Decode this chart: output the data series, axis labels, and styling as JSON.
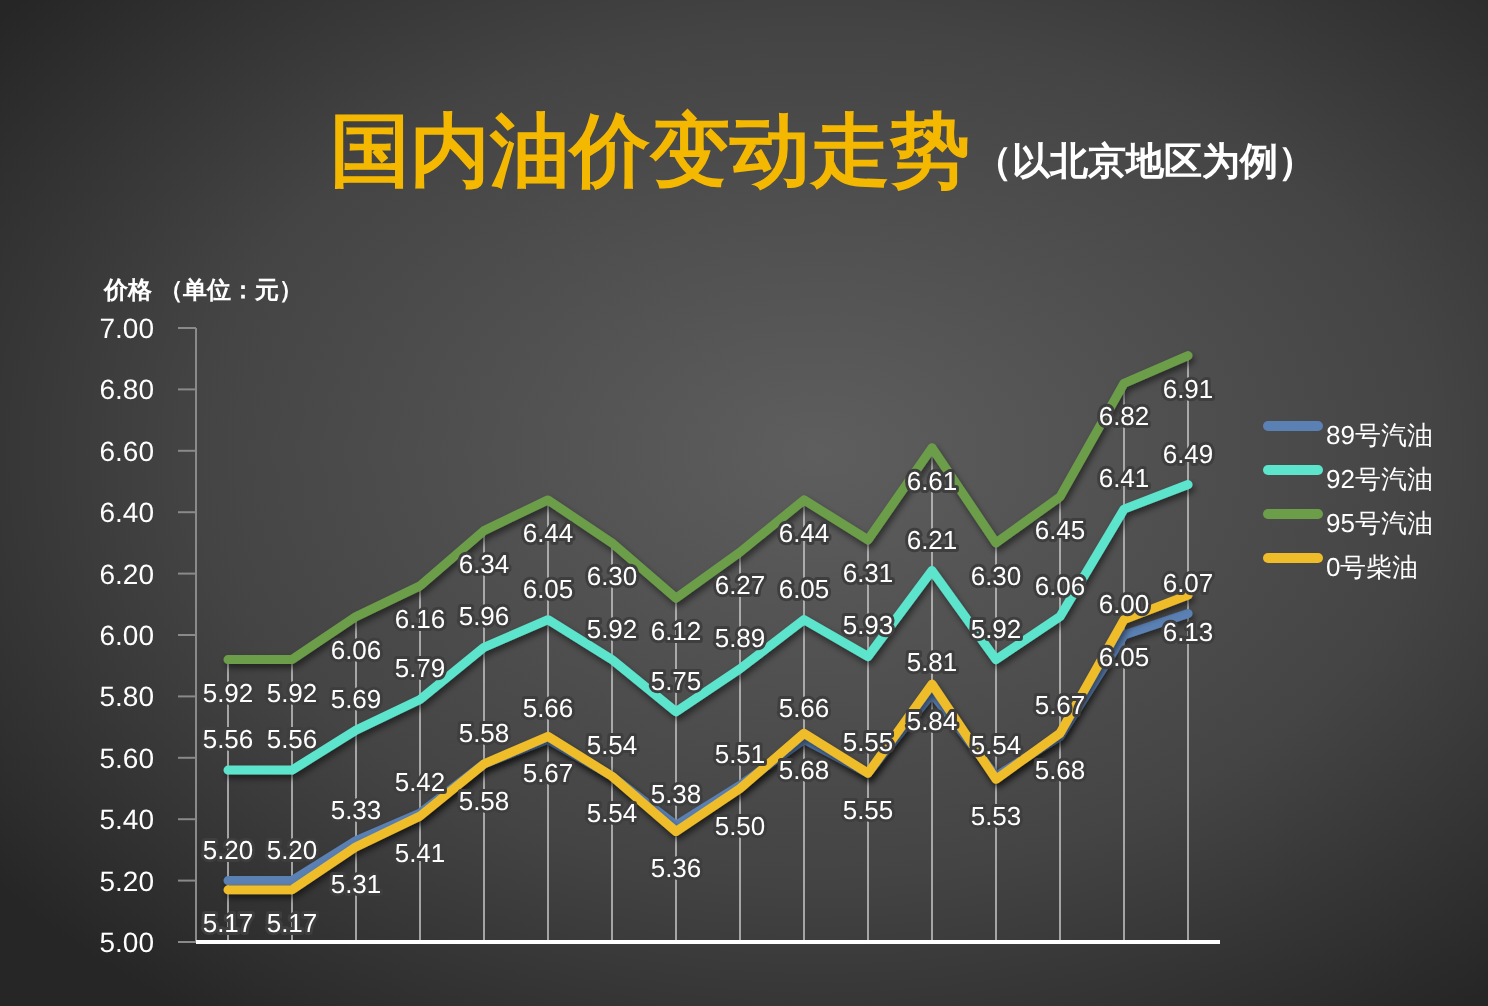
{
  "chart_data": {
    "type": "line",
    "title": "国内油价变动走势",
    "subtitle": "（以北京地区为例）",
    "ylabel": "价格 （单位：元）",
    "categories": [
      null,
      null,
      null,
      null,
      null,
      null,
      null,
      null,
      null,
      null,
      null,
      null,
      null,
      null,
      null,
      null
    ],
    "series": [
      {
        "name": "89号汽油",
        "color": "#5a80b4",
        "values": [
          5.2,
          5.2,
          5.33,
          5.42,
          5.58,
          5.66,
          5.54,
          5.38,
          5.51,
          5.66,
          5.55,
          5.81,
          5.54,
          5.67,
          6.0,
          6.07
        ],
        "value_labels": [
          "5.20",
          "5.20",
          "5.33",
          "5.42",
          "5.58",
          "5.66",
          "5.54",
          "5.38",
          "5.51",
          "5.66",
          "5.55",
          "5.81",
          "5.54",
          "5.67",
          "6.00",
          "6.07"
        ]
      },
      {
        "name": "92号汽油",
        "color": "#5ce4cc",
        "values": [
          5.56,
          5.56,
          5.69,
          5.79,
          5.96,
          6.05,
          5.92,
          5.75,
          5.89,
          6.05,
          5.93,
          6.21,
          5.92,
          6.06,
          6.41,
          6.49
        ],
        "value_labels": [
          "5.56",
          "5.56",
          "5.69",
          "5.79",
          "5.96",
          "6.05",
          "5.92",
          "5.75",
          "5.89",
          "6.05",
          "5.93",
          "6.21",
          "5.92",
          "6.06",
          "6.41",
          "6.49"
        ]
      },
      {
        "name": "95号汽油",
        "color": "#6c9e4a",
        "values": [
          5.92,
          5.92,
          6.06,
          6.16,
          6.34,
          6.44,
          6.3,
          6.12,
          6.27,
          6.44,
          6.31,
          6.61,
          6.3,
          6.45,
          6.82,
          6.91
        ],
        "value_labels": [
          "5.92",
          "5.92",
          "6.06",
          "6.16",
          "6.34",
          "6.44",
          "6.30",
          "6.12",
          "6.27",
          "6.44",
          "6.31",
          "6.61",
          "6.30",
          "6.45",
          "6.82",
          "6.91"
        ]
      },
      {
        "name": "0号柴油",
        "color": "#f0bd2a",
        "values": [
          5.17,
          5.17,
          5.31,
          5.41,
          5.58,
          5.67,
          5.54,
          5.36,
          5.5,
          5.68,
          5.55,
          5.84,
          5.53,
          5.68,
          6.05,
          6.13
        ],
        "value_labels": [
          "5.17",
          "5.17",
          "5.31",
          "5.41",
          "5.58",
          "5.67",
          "5.54",
          "5.36",
          "5.50",
          "5.68",
          "5.55",
          "5.84",
          "5.53",
          "5.68",
          "6.05",
          "6.13"
        ]
      }
    ],
    "ylim": [
      5,
      7
    ],
    "yticks": [
      {
        "value": 5,
        "label": "5.00"
      },
      {
        "value": 5.2,
        "label": "5.20"
      },
      {
        "value": 5.4,
        "label": "5.40"
      },
      {
        "value": 5.6,
        "label": "5.60"
      },
      {
        "value": 5.8,
        "label": "5.80"
      },
      {
        "value": 6,
        "label": "6.00"
      },
      {
        "value": 6.2,
        "label": "6.20"
      },
      {
        "value": 6.4,
        "label": "6.40"
      },
      {
        "value": 6.6,
        "label": "6.60"
      },
      {
        "value": 6.8,
        "label": "6.80"
      },
      {
        "value": 7,
        "label": "7.00"
      }
    ],
    "grid": "x",
    "legend": "right"
  }
}
